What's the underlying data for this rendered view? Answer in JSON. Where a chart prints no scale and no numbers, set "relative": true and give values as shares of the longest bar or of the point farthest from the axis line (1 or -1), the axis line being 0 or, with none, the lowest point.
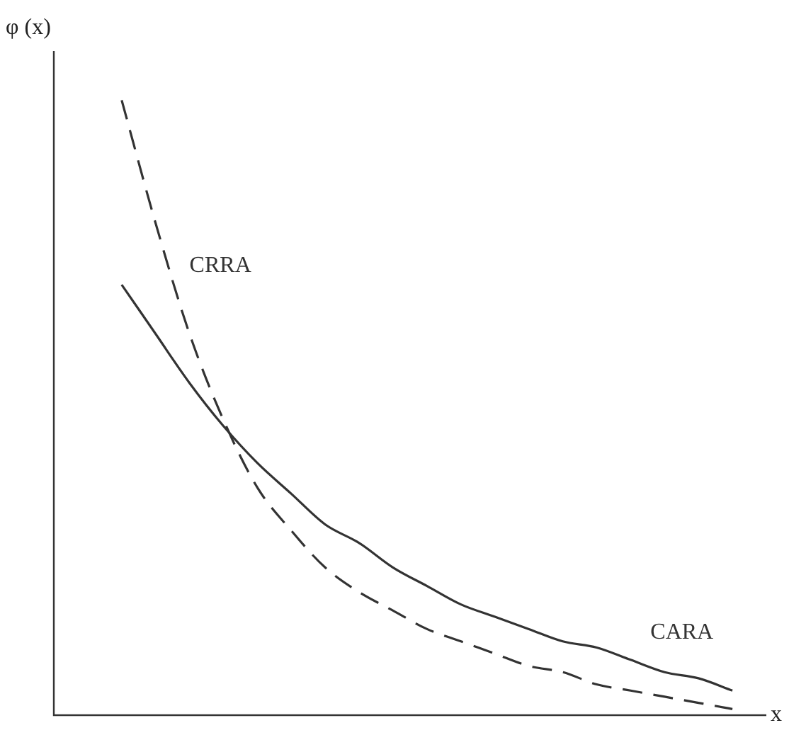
{
  "chart_data": {
    "type": "line",
    "relative": true,
    "xlabel": "x",
    "ylabel": "φ (x)",
    "legend": false,
    "tick_labels": false,
    "marker": "none",
    "categories": [
      null,
      null,
      null,
      null,
      null,
      null,
      null,
      null,
      null,
      null,
      null,
      null,
      null,
      null,
      null,
      null,
      null,
      null,
      null,
      null,
      null,
      null
    ],
    "series": [
      {
        "name": "CRRA",
        "color": "#333333",
        "line_style": "dashed",
        "values": [
          null,
          null,
          1,
          0.8,
          0.62,
          0.48,
          0.37,
          0.3,
          0.24,
          0.2,
          0.17,
          0.14,
          0.12,
          0.1,
          0.08,
          0.07,
          0.05,
          0.04,
          0.03,
          0.02,
          0.01,
          null
        ]
      },
      {
        "name": "CARA",
        "color": "#333333",
        "line_style": "solid",
        "values": [
          null,
          null,
          0.7,
          0.62,
          0.54,
          0.47,
          0.41,
          0.36,
          0.31,
          0.28,
          0.24,
          0.21,
          0.18,
          0.16,
          0.14,
          0.12,
          0.11,
          0.09,
          0.07,
          0.06,
          0.04,
          null
        ]
      }
    ]
  }
}
